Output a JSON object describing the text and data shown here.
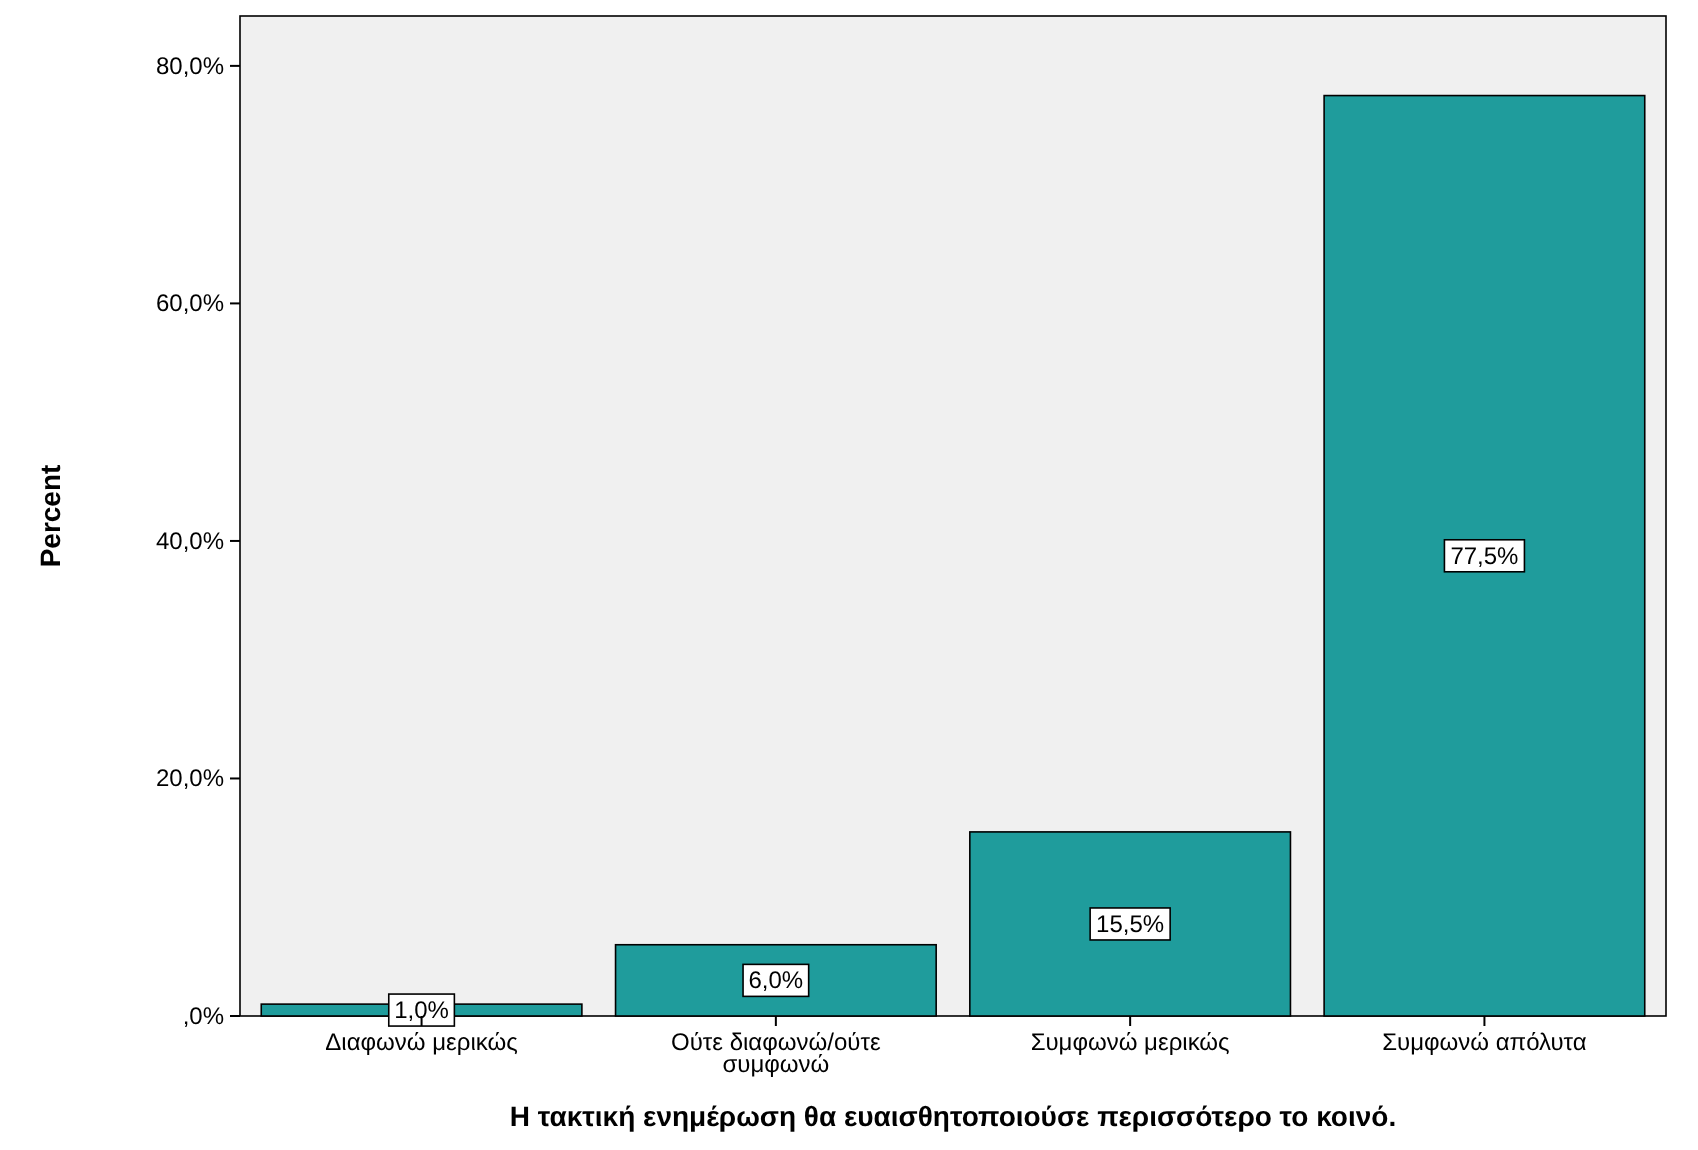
{
  "chart_data": {
    "type": "bar",
    "xlabel": "Η τακτική ενημέρωση θα ευαισθητοποιούσε περισσότερο το κοινό.",
    "ylabel": "Percent",
    "categories": [
      "Διαφωνώ μερικώς",
      "Ούτε διαφωνώ/ούτε συμφωνώ",
      "Συμφωνώ μερικώς",
      "Συμφωνώ απόλυτα"
    ],
    "values": [
      1.0,
      6.0,
      15.5,
      77.5
    ],
    "value_labels": [
      "1,0%",
      "6,0%",
      "15,5%",
      "77,5%"
    ],
    "color": "#1f9c9c",
    "ylim": [
      0,
      84.2
    ],
    "yticks": [
      {
        "value": 0,
        "label": ",0%"
      },
      {
        "value": 20,
        "label": "20,0%"
      },
      {
        "value": 40,
        "label": "40,0%"
      },
      {
        "value": 60,
        "label": "60,0%"
      },
      {
        "value": 80,
        "label": "80,0%"
      }
    ]
  }
}
